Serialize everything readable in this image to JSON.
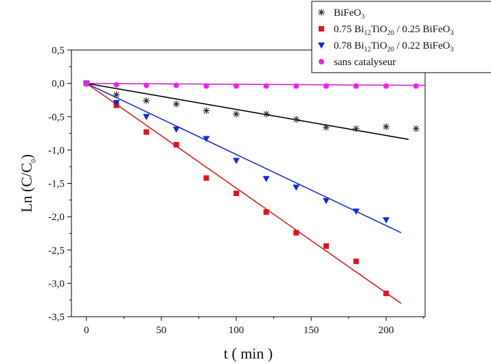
{
  "chart_data": {
    "type": "scatter",
    "xlabel": "t ( min )",
    "ylabel_main": "Ln (C/C",
    "ylabel_sub": "0",
    "ylabel_end": ")",
    "xlim": [
      -10,
      226
    ],
    "ylim": [
      -3.5,
      0.5
    ],
    "xticks": [
      0,
      50,
      100,
      150,
      200
    ],
    "yticks": [
      0.5,
      0.0,
      -0.5,
      -1.0,
      -1.5,
      -2.0,
      -2.5,
      -3.0,
      -3.5
    ],
    "xtick_labels": [
      "0",
      "50",
      "100",
      "150",
      "200"
    ],
    "ytick_labels": [
      "0,5",
      "0,0",
      "-0,5",
      "-1,0",
      "-1,5",
      "-2,0",
      "-2,5",
      "-3,0",
      "-3,5"
    ],
    "legend_position": "top-right",
    "series": [
      {
        "key": "bfo",
        "legend_parts": [
          {
            "t": "BiFeO",
            "sub": false
          },
          {
            "t": "3",
            "sub": true
          }
        ],
        "marker": "asterisk",
        "color": "#222222",
        "line_color": "#000000",
        "x": [
          0,
          20,
          40,
          60,
          80,
          100,
          120,
          140,
          160,
          180,
          200,
          220
        ],
        "y": [
          0.0,
          -0.17,
          -0.26,
          -0.31,
          -0.41,
          -0.46,
          -0.46,
          -0.54,
          -0.66,
          -0.68,
          -0.65,
          -0.68
        ],
        "fit": {
          "x": [
            0,
            215
          ],
          "y": [
            0.0,
            -0.84
          ]
        }
      },
      {
        "key": "b75",
        "legend_parts": [
          {
            "t": "0.75 Bi",
            "sub": false
          },
          {
            "t": "12",
            "sub": true
          },
          {
            "t": "TiO",
            "sub": false
          },
          {
            "t": "20",
            "sub": true
          },
          {
            "t": " / 0.25 BiFeO",
            "sub": false
          },
          {
            "t": "3",
            "sub": true
          }
        ],
        "marker": "square",
        "color": "#e0141c",
        "line_color": "#d62222",
        "x": [
          0,
          20,
          40,
          60,
          80,
          100,
          120,
          140,
          160,
          180,
          200
        ],
        "y": [
          0.0,
          -0.33,
          -0.73,
          -0.92,
          -1.42,
          -1.65,
          -1.93,
          -2.24,
          -2.44,
          -2.67,
          -3.15
        ],
        "fit": {
          "x": [
            0,
            210
          ],
          "y": [
            0.0,
            -3.3
          ]
        }
      },
      {
        "key": "b78",
        "legend_parts": [
          {
            "t": "0.78 Bi",
            "sub": false
          },
          {
            "t": "12",
            "sub": true
          },
          {
            "t": "TiO",
            "sub": false
          },
          {
            "t": "20",
            "sub": true
          },
          {
            "t": " / 0.22 BiFeO",
            "sub": false
          },
          {
            "t": "3",
            "sub": true
          }
        ],
        "marker": "triangle-down",
        "color": "#1428e0",
        "line_color": "#1c2fd0",
        "x": [
          0,
          20,
          40,
          60,
          80,
          100,
          120,
          140,
          160,
          180,
          200
        ],
        "y": [
          0.0,
          -0.29,
          -0.5,
          -0.69,
          -0.83,
          -1.16,
          -1.43,
          -1.56,
          -1.76,
          -1.92,
          -2.05
        ],
        "fit": {
          "x": [
            0,
            210
          ],
          "y": [
            0.0,
            -2.24
          ]
        }
      },
      {
        "key": "sans",
        "legend_parts": [
          {
            "t": "sans catalyseur",
            "sub": false
          }
        ],
        "marker": "circle",
        "color": "#ee22ee",
        "line_color": "#cc22cc",
        "x": [
          0,
          20,
          40,
          60,
          80,
          100,
          120,
          140,
          160,
          180,
          200,
          220
        ],
        "y": [
          0.0,
          -0.02,
          -0.03,
          -0.03,
          -0.04,
          -0.04,
          -0.04,
          -0.04,
          -0.04,
          -0.04,
          -0.04,
          -0.04
        ],
        "fit": {
          "x": [
            0,
            226
          ],
          "y": [
            0.0,
            -0.03
          ]
        }
      }
    ]
  }
}
